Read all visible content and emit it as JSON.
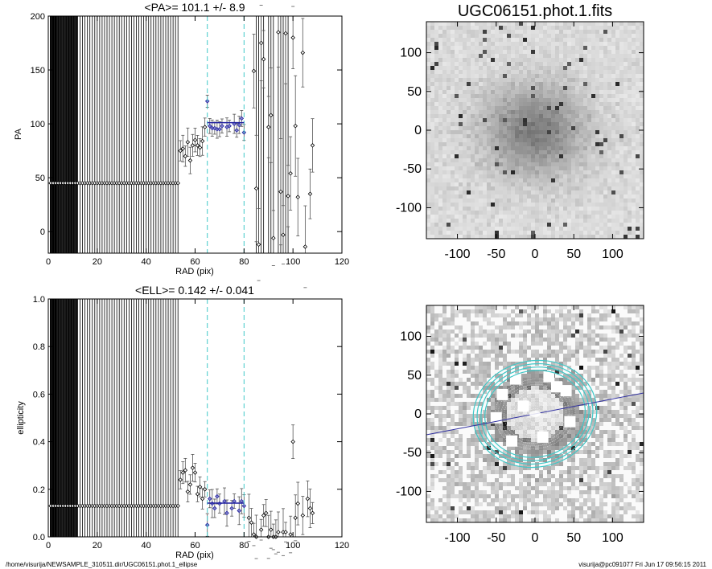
{
  "footer": {
    "left": "/home/visurija/NEWSAMPLE_310511.dir/UGC06151.phot.1_ellipse",
    "right": "visurija@pc091077  Fri Jun 17 09:56:15 2011"
  },
  "chart_data": [
    {
      "type": "scatter",
      "title": "<PA>= 101.1 +/-   8.9",
      "xlabel": "RAD (pix)",
      "ylabel": "PA",
      "xlim": [
        0,
        120
      ],
      "ylim": [
        -20,
        200
      ],
      "xticks": [
        "0",
        "20",
        "40",
        "60",
        "80",
        "100",
        "120"
      ],
      "yticks": [
        "0",
        "50",
        "100",
        "150",
        "200"
      ],
      "mean": 101.1,
      "mean_err": 8.9,
      "fit_range": [
        65,
        80
      ],
      "series": [
        {
          "points": [
            [
              1,
              45
            ],
            [
              2,
              45
            ],
            [
              3,
              45
            ],
            [
              4,
              45
            ],
            [
              5,
              45
            ],
            [
              6,
              45
            ],
            [
              7,
              45
            ],
            [
              8,
              45
            ],
            [
              9,
              45
            ],
            [
              10,
              45
            ],
            [
              11,
              45
            ],
            [
              12,
              45
            ],
            [
              13,
              45
            ],
            [
              14,
              45
            ],
            [
              15,
              45
            ],
            [
              16,
              45
            ],
            [
              17,
              45
            ],
            [
              18,
              45
            ],
            [
              19,
              45
            ],
            [
              20,
              45
            ],
            [
              21,
              45
            ],
            [
              22,
              45
            ],
            [
              23,
              45
            ],
            [
              24,
              45
            ],
            [
              25,
              45
            ],
            [
              26,
              45
            ],
            [
              27,
              45
            ],
            [
              28,
              45
            ],
            [
              29,
              45
            ],
            [
              30,
              45
            ],
            [
              31,
              45
            ],
            [
              32,
              45
            ],
            [
              33,
              45
            ],
            [
              34,
              45
            ],
            [
              35,
              45
            ],
            [
              36,
              45
            ],
            [
              37,
              45
            ],
            [
              38,
              45
            ],
            [
              39,
              45
            ],
            [
              40,
              45
            ],
            [
              41,
              45
            ],
            [
              42,
              45
            ],
            [
              43,
              45
            ],
            [
              44,
              45
            ],
            [
              45,
              45
            ],
            [
              46,
              45
            ],
            [
              47,
              45
            ],
            [
              48,
              45
            ],
            [
              49,
              45
            ],
            [
              50,
              45
            ],
            [
              51,
              45
            ],
            [
              52,
              45
            ],
            [
              53,
              45
            ],
            [
              54,
              75
            ],
            [
              55,
              77
            ],
            [
              56,
              70
            ],
            [
              57,
              83
            ],
            [
              58,
              66
            ],
            [
              59,
              80
            ],
            [
              60,
              85
            ],
            [
              61,
              80
            ],
            [
              62,
              78
            ],
            [
              63,
              84
            ],
            [
              64,
              97
            ],
            [
              65,
              121
            ],
            [
              66,
              98
            ],
            [
              67,
              96
            ],
            [
              68,
              96
            ],
            [
              69,
              95
            ],
            [
              70,
              95
            ],
            [
              71,
              98
            ],
            [
              73,
              97
            ],
            [
              74,
              98
            ],
            [
              76,
              100
            ],
            [
              77,
              94
            ],
            [
              78,
              99
            ],
            [
              79,
              105
            ],
            [
              80,
              92
            ],
            [
              84,
              149
            ],
            [
              85,
              40
            ],
            [
              86,
              -12
            ],
            [
              87,
              175
            ],
            [
              88,
              160
            ],
            [
              90,
              97
            ],
            [
              91,
              108
            ],
            [
              92,
              -6
            ],
            [
              94,
              185
            ],
            [
              95,
              37
            ],
            [
              96,
              -3
            ],
            [
              97,
              184
            ],
            [
              98,
              33
            ],
            [
              99,
              54
            ],
            [
              100,
              180
            ],
            [
              101,
              98
            ],
            [
              102,
              32
            ],
            [
              104,
              166
            ],
            [
              105,
              -14
            ],
            [
              107,
              35
            ],
            [
              108,
              80
            ]
          ]
        }
      ]
    },
    {
      "type": "scatter",
      "title": "<ELL>= 0.142 +/-  0.041",
      "xlabel": "RAD (pix)",
      "ylabel": "ellipticity",
      "xlim": [
        0,
        120
      ],
      "ylim": [
        0,
        1
      ],
      "xticks": [
        "0",
        "20",
        "40",
        "60",
        "80",
        "100",
        "120"
      ],
      "yticks": [
        "0.0",
        "0.2",
        "0.4",
        "0.6",
        "0.8",
        "1.0"
      ],
      "mean": 0.142,
      "mean_err": 0.041,
      "fit_range": [
        65,
        80
      ],
      "series": [
        {
          "points": [
            [
              1,
              0.13
            ],
            [
              2,
              0.13
            ],
            [
              3,
              0.13
            ],
            [
              4,
              0.13
            ],
            [
              5,
              0.13
            ],
            [
              6,
              0.13
            ],
            [
              7,
              0.13
            ],
            [
              8,
              0.13
            ],
            [
              9,
              0.13
            ],
            [
              10,
              0.13
            ],
            [
              11,
              0.13
            ],
            [
              12,
              0.13
            ],
            [
              13,
              0.13
            ],
            [
              14,
              0.13
            ],
            [
              15,
              0.13
            ],
            [
              16,
              0.13
            ],
            [
              17,
              0.13
            ],
            [
              18,
              0.13
            ],
            [
              19,
              0.13
            ],
            [
              20,
              0.13
            ],
            [
              21,
              0.13
            ],
            [
              22,
              0.13
            ],
            [
              23,
              0.13
            ],
            [
              24,
              0.13
            ],
            [
              25,
              0.13
            ],
            [
              26,
              0.13
            ],
            [
              27,
              0.13
            ],
            [
              28,
              0.13
            ],
            [
              29,
              0.13
            ],
            [
              30,
              0.13
            ],
            [
              31,
              0.13
            ],
            [
              32,
              0.13
            ],
            [
              33,
              0.13
            ],
            [
              34,
              0.13
            ],
            [
              35,
              0.13
            ],
            [
              36,
              0.13
            ],
            [
              37,
              0.13
            ],
            [
              38,
              0.13
            ],
            [
              39,
              0.13
            ],
            [
              40,
              0.13
            ],
            [
              41,
              0.13
            ],
            [
              42,
              0.13
            ],
            [
              43,
              0.13
            ],
            [
              44,
              0.13
            ],
            [
              45,
              0.13
            ],
            [
              46,
              0.13
            ],
            [
              47,
              0.13
            ],
            [
              48,
              0.13
            ],
            [
              49,
              0.13
            ],
            [
              50,
              0.13
            ],
            [
              51,
              0.13
            ],
            [
              52,
              0.13
            ],
            [
              53,
              0.13
            ],
            [
              54,
              0.24
            ],
            [
              55,
              0.27
            ],
            [
              56,
              0.28
            ],
            [
              57,
              0.19
            ],
            [
              58,
              0.22
            ],
            [
              59,
              0.29
            ],
            [
              60,
              0.27
            ],
            [
              61,
              0.18
            ],
            [
              62,
              0.21
            ],
            [
              63,
              0.16
            ],
            [
              64,
              0.2
            ],
            [
              65,
              0.05
            ],
            [
              66,
              0.16
            ],
            [
              67,
              0.14
            ],
            [
              68,
              0.12
            ],
            [
              69,
              0.17
            ],
            [
              70,
              0.14
            ],
            [
              72,
              0.15
            ],
            [
              73,
              0.1
            ],
            [
              75,
              0.12
            ],
            [
              76,
              0.15
            ],
            [
              78,
              0.11
            ],
            [
              79,
              0.15
            ],
            [
              80,
              0.13
            ],
            [
              82,
              0.08
            ],
            [
              83,
              0.06
            ],
            [
              84,
              0.01
            ],
            [
              85,
              0.0
            ],
            [
              87,
              0.03
            ],
            [
              88,
              0.09
            ],
            [
              89,
              0.1
            ],
            [
              90,
              0.0
            ],
            [
              91,
              0.03
            ],
            [
              92,
              0.0
            ],
            [
              93,
              0.0
            ],
            [
              94,
              0.02
            ],
            [
              96,
              0.02
            ],
            [
              97,
              0.02
            ],
            [
              99,
              0.01
            ],
            [
              100,
              0.4
            ],
            [
              101,
              0.08
            ],
            [
              102,
              0.14
            ],
            [
              104,
              0.09
            ],
            [
              106,
              0.16
            ],
            [
              107,
              0.12
            ],
            [
              108,
              0.1
            ]
          ]
        }
      ]
    },
    {
      "type": "heatmap",
      "title": "UGC06151.phot.1.fits",
      "xlim": [
        -140,
        140
      ],
      "ylim": [
        -140,
        140
      ],
      "xticks": [
        "-100",
        "-50",
        "0",
        "50",
        "100"
      ],
      "yticks": [
        "-100",
        "-50",
        "0",
        "50",
        "100"
      ],
      "colormap": "grayscale"
    },
    {
      "type": "heatmap",
      "title": "",
      "xlim": [
        -140,
        140
      ],
      "ylim": [
        -140,
        140
      ],
      "xticks": [
        "-100",
        "-50",
        "0",
        "50",
        "100"
      ],
      "yticks": [
        "-100",
        "-50",
        "0",
        "50",
        "100"
      ],
      "colormap": "grayscale",
      "ellipse_color": "#40c8c8",
      "pa_line_color": "#3030a0"
    }
  ]
}
